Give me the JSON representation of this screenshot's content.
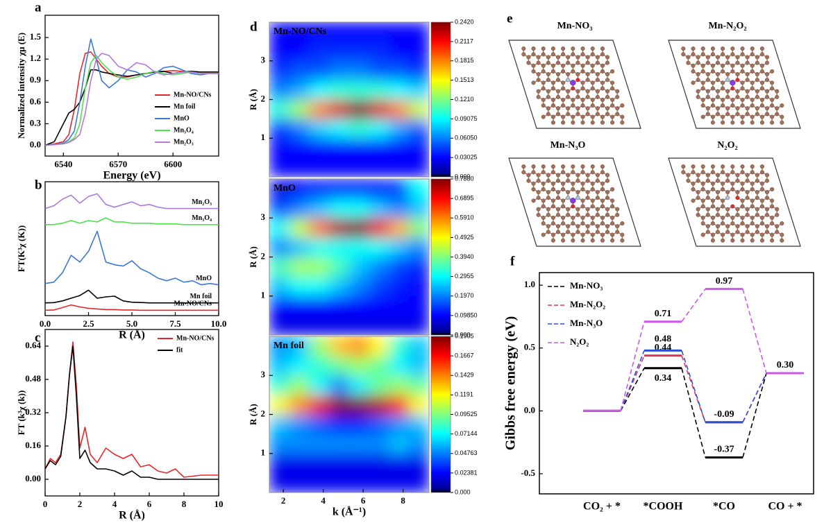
{
  "chart_data": [
    {
      "type": "line",
      "label": "a",
      "xlabel": "Energy (eV)",
      "ylabel": "Normalized intensity χμ (E)",
      "x": [
        6530,
        6535,
        6540,
        6543,
        6546,
        6549,
        6552,
        6555,
        6558,
        6561,
        6565,
        6570,
        6575,
        6580,
        6585,
        6590,
        6595,
        6600,
        6605,
        6610,
        6615,
        6620,
        6625
      ],
      "xlim": [
        6530,
        6625
      ],
      "xticks": [
        6540,
        6570,
        6600
      ],
      "ylim": [
        -0.15,
        1.81
      ],
      "yticks": [
        {
          "value": 0,
          "label": "0.0"
        },
        0.3,
        0.6,
        0.9,
        1.2,
        1.5
      ],
      "legend": "lower right",
      "series": [
        {
          "name": "Mn-NO/CNs",
          "color": "#e8262a",
          "values": [
            0.0,
            0.02,
            0.05,
            0.15,
            0.5,
            1.0,
            1.28,
            1.3,
            1.2,
            1.1,
            1.0,
            0.95,
            0.95,
            0.98,
            1.0,
            1.02,
            1.03,
            1.04,
            1.03,
            1.02,
            1.02,
            1.02,
            1.02
          ]
        },
        {
          "name": "Mn foil",
          "color": "#000000",
          "values": [
            0.0,
            0.05,
            0.3,
            0.45,
            0.5,
            0.6,
            0.8,
            1.05,
            1.05,
            1.02,
            1.0,
            0.98,
            0.96,
            0.98,
            1.0,
            1.02,
            1.03,
            1.0,
            1.02,
            1.03,
            1.02,
            1.02,
            1.02
          ]
        },
        {
          "name": "MnO",
          "color": "#3a78d8",
          "values": [
            0.0,
            0.01,
            0.03,
            0.08,
            0.2,
            0.6,
            1.1,
            1.48,
            1.2,
            0.9,
            0.8,
            0.9,
            1.05,
            1.02,
            0.95,
            1.0,
            1.08,
            1.1,
            1.05,
            1.0,
            0.98,
            1.0,
            1.0
          ]
        },
        {
          "name": "Mn₃O₄",
          "color": "#4ee04e",
          "values": [
            0.0,
            0.01,
            0.02,
            0.05,
            0.1,
            0.3,
            0.8,
            1.15,
            1.25,
            1.15,
            1.05,
            0.95,
            0.92,
            0.95,
            1.0,
            1.03,
            1.0,
            0.98,
            1.0,
            1.02,
            1.0,
            1.0,
            1.0
          ]
        },
        {
          "name": "Mn₂O₃",
          "color": "#b07ad8",
          "values": [
            0.0,
            0.01,
            0.02,
            0.04,
            0.08,
            0.15,
            0.45,
            0.9,
            1.2,
            1.28,
            1.25,
            1.1,
            1.05,
            1.15,
            1.12,
            1.02,
            0.98,
            1.0,
            1.02,
            1.02,
            1.0,
            1.0,
            1.0
          ]
        }
      ]
    },
    {
      "type": "line",
      "label": "b",
      "xlabel": "R (Å)",
      "ylabel": "FT(K³χ (K))",
      "x": [
        0,
        0.5,
        1,
        1.5,
        2,
        2.5,
        3,
        3.5,
        4,
        4.5,
        5,
        5.5,
        6,
        6.5,
        7,
        7.5,
        8,
        8.5,
        9,
        9.5,
        10
      ],
      "xlim": [
        0,
        10
      ],
      "xticks": [
        {
          "value": 0,
          "label": "0.0"
        },
        2.5,
        {
          "value": 5,
          "label": "5.0"
        },
        7.5,
        {
          "value": 10,
          "label": "10.0"
        }
      ],
      "ylim": [
        0,
        10
      ],
      "legend": "inline",
      "series": [
        {
          "name": "Mn₂O₃",
          "color": "#b07ad8",
          "values": [
            8.0,
            8.2,
            8.7,
            9.0,
            8.4,
            8.9,
            9.1,
            8.3,
            8.1,
            8.3,
            8.5,
            8.2,
            8.3,
            8.1,
            8.0,
            8.0,
            8.0,
            8.0,
            8.0,
            8.0,
            8.0
          ]
        },
        {
          "name": "Mn₃O₄",
          "color": "#4ee04e",
          "values": [
            6.8,
            6.8,
            6.9,
            7.1,
            6.9,
            7.1,
            7.0,
            7.3,
            7.0,
            7.0,
            6.9,
            6.9,
            6.9,
            6.85,
            6.85,
            6.85,
            6.8,
            6.8,
            6.8,
            6.8,
            6.8
          ]
        },
        {
          "name": "MnO",
          "color": "#3a78d8",
          "values": [
            2.4,
            2.5,
            3.2,
            4.5,
            4.0,
            4.8,
            6.3,
            4.0,
            3.8,
            3.7,
            4.1,
            3.5,
            3.2,
            2.8,
            2.6,
            2.8,
            2.5,
            2.6,
            2.3,
            2.4,
            2.3
          ]
        },
        {
          "name": "Mn foil",
          "color": "#000000",
          "values": [
            0.95,
            0.97,
            1.1,
            1.3,
            1.5,
            1.9,
            1.3,
            1.4,
            1.45,
            1.1,
            1.0,
            0.98,
            0.95,
            0.95,
            0.95,
            0.95,
            0.95,
            0.95,
            0.95,
            0.95,
            0.95
          ]
        },
        {
          "name": "Mn-NO/CNs",
          "color": "#e8262a",
          "values": [
            0.4,
            0.42,
            0.6,
            0.8,
            0.65,
            0.55,
            0.5,
            0.45,
            0.45,
            0.42,
            0.42,
            0.4,
            0.4,
            0.4,
            0.4,
            0.4,
            0.4,
            0.4,
            0.4,
            0.4,
            0.4
          ]
        }
      ]
    },
    {
      "type": "line",
      "label": "c",
      "xlabel": "R (Å)",
      "ylabel": "FT (k³χ (k))",
      "x": [
        0,
        0.3,
        0.6,
        0.9,
        1.2,
        1.4,
        1.6,
        1.8,
        2.0,
        2.3,
        2.6,
        3.0,
        3.5,
        4.0,
        4.5,
        5.0,
        5.5,
        6.0,
        6.5,
        7.0,
        7.5,
        8.0,
        9.0,
        10.0
      ],
      "xlim": [
        0,
        10
      ],
      "xticks": [
        0,
        2,
        4,
        6,
        8,
        10
      ],
      "ylim": [
        -0.08,
        0.72
      ],
      "yticks": [
        {
          "value": 0,
          "label": "0.00"
        },
        0.16,
        0.32,
        0.48,
        0.64
      ],
      "legend": "upper right",
      "series": [
        {
          "name": "Mn-NO/CNs",
          "color": "#e8262a",
          "values": [
            0.05,
            0.1,
            0.08,
            0.12,
            0.3,
            0.5,
            0.66,
            0.45,
            0.15,
            0.25,
            0.12,
            0.08,
            0.15,
            0.12,
            0.1,
            0.12,
            0.06,
            0.07,
            0.04,
            0.03,
            0.05,
            0.01,
            0.02,
            0.02
          ]
        },
        {
          "name": "fit",
          "color": "#000000",
          "values": [
            0.05,
            0.09,
            0.07,
            0.11,
            0.3,
            0.5,
            0.64,
            0.4,
            0.1,
            0.14,
            0.08,
            0.05,
            0.05,
            0.04,
            0.02,
            0.04,
            0.01,
            0.01,
            0.0,
            0.0,
            0.0,
            0.0,
            0.0,
            0.0
          ]
        }
      ]
    },
    {
      "type": "heatmap",
      "label": "d",
      "title": "Mn-NO/CNs",
      "title_color": "#e8262a",
      "ylabel": "R (Å)",
      "x": [
        1.8,
        2.8,
        3.8,
        4.8,
        5.8,
        6.8,
        7.8,
        8.8
      ],
      "y": [
        0.25,
        0.75,
        1.25,
        1.75,
        2.25,
        2.75,
        3.25,
        3.75
      ],
      "xlim": [
        1.3,
        9.3
      ],
      "ylim": [
        0,
        4
      ],
      "yticks": [
        1,
        2,
        3
      ],
      "colormap": "jet",
      "zlim": [
        0,
        0.242
      ],
      "zticks": [
        {
          "value": 0.242,
          "label": "0.2420"
        },
        {
          "value": 0.2117,
          "label": "0.2117"
        },
        {
          "value": 0.1815,
          "label": "0.1815"
        },
        {
          "value": 0.1513,
          "label": "0.1513"
        },
        {
          "value": 0.121,
          "label": "0.1210"
        },
        {
          "value": 0.09075,
          "label": "0.09075"
        },
        {
          "value": 0.0605,
          "label": "0.06050"
        },
        {
          "value": 0.03025,
          "label": "0.03025"
        },
        {
          "value": 0,
          "label": "0.000"
        }
      ],
      "z": [
        [
          0.03,
          0.03,
          0.03,
          0.03,
          0.03,
          0.03,
          0.03,
          0.03
        ],
        [
          0.03,
          0.03,
          0.03,
          0.03,
          0.03,
          0.03,
          0.03,
          0.03
        ],
        [
          0.04,
          0.06,
          0.08,
          0.09,
          0.1,
          0.09,
          0.07,
          0.05
        ],
        [
          0.1,
          0.13,
          0.18,
          0.22,
          0.24,
          0.22,
          0.18,
          0.14
        ],
        [
          0.06,
          0.07,
          0.09,
          0.1,
          0.1,
          0.1,
          0.09,
          0.08
        ],
        [
          0.04,
          0.05,
          0.05,
          0.06,
          0.06,
          0.05,
          0.05,
          0.04
        ],
        [
          0.03,
          0.03,
          0.04,
          0.04,
          0.04,
          0.04,
          0.03,
          0.03
        ],
        [
          0.03,
          0.03,
          0.03,
          0.03,
          0.03,
          0.03,
          0.03,
          0.03
        ]
      ]
    },
    {
      "type": "heatmap",
      "title": "MnO",
      "title_color": "#ffffff",
      "ylabel": "R (Å)",
      "x": [
        1.8,
        2.8,
        3.8,
        4.8,
        5.8,
        6.8,
        7.8,
        8.8
      ],
      "y": [
        0.25,
        0.75,
        1.25,
        1.75,
        2.25,
        2.75,
        3.25,
        3.75
      ],
      "xlim": [
        1.3,
        9.3
      ],
      "ylim": [
        0,
        4
      ],
      "yticks": [
        1,
        2,
        3
      ],
      "colormap": "jet",
      "zlim": [
        0,
        0.788
      ],
      "zticks": [
        {
          "value": 0.788,
          "label": "0.7880"
        },
        {
          "value": 0.6895,
          "label": "0.6895"
        },
        {
          "value": 0.591,
          "label": "0.5910"
        },
        {
          "value": 0.4925,
          "label": "0.4925"
        },
        {
          "value": 0.394,
          "label": "0.3940"
        },
        {
          "value": 0.2955,
          "label": "0.2955"
        },
        {
          "value": 0.197,
          "label": "0.1970"
        },
        {
          "value": 0.0985,
          "label": "0.09850"
        },
        {
          "value": 0,
          "label": "0.000"
        }
      ],
      "z": [
        [
          0.08,
          0.08,
          0.08,
          0.08,
          0.08,
          0.08,
          0.08,
          0.08
        ],
        [
          0.1,
          0.1,
          0.1,
          0.1,
          0.1,
          0.1,
          0.1,
          0.1
        ],
        [
          0.25,
          0.3,
          0.3,
          0.25,
          0.2,
          0.15,
          0.12,
          0.1
        ],
        [
          0.35,
          0.42,
          0.42,
          0.35,
          0.25,
          0.2,
          0.15,
          0.12
        ],
        [
          0.2,
          0.25,
          0.3,
          0.3,
          0.3,
          0.3,
          0.25,
          0.2
        ],
        [
          0.3,
          0.45,
          0.6,
          0.75,
          0.78,
          0.7,
          0.55,
          0.4
        ],
        [
          0.15,
          0.2,
          0.25,
          0.3,
          0.3,
          0.25,
          0.2,
          0.25
        ],
        [
          0.08,
          0.1,
          0.12,
          0.12,
          0.12,
          0.12,
          0.15,
          0.3
        ]
      ]
    },
    {
      "type": "heatmap",
      "title": "Mn foil",
      "title_color": "#ffffff",
      "ylabel": "R (Å)",
      "xlabel": "k (Å⁻¹)",
      "x": [
        1.8,
        2.8,
        3.8,
        4.8,
        5.8,
        6.8,
        7.8,
        8.8
      ],
      "y": [
        0.25,
        0.75,
        1.25,
        1.75,
        2.25,
        2.75,
        3.25,
        3.75
      ],
      "xlim": [
        1.3,
        9.3
      ],
      "xticks": [
        2,
        4,
        6,
        8
      ],
      "ylim": [
        0,
        4
      ],
      "yticks": [
        1,
        2,
        3
      ],
      "colormap": "jet",
      "zlim": [
        0,
        0.1905
      ],
      "zticks": [
        {
          "value": 0.1905,
          "label": "0.1905"
        },
        {
          "value": 0.1667,
          "label": "0.1667"
        },
        {
          "value": 0.1429,
          "label": "0.1429"
        },
        {
          "value": 0.1191,
          "label": "0.1191"
        },
        {
          "value": 0.09525,
          "label": "0.09525"
        },
        {
          "value": 0.07144,
          "label": "0.07144"
        },
        {
          "value": 0.04763,
          "label": "0.04763"
        },
        {
          "value": 0.02381,
          "label": "0.02381"
        },
        {
          "value": 0,
          "label": "0.000"
        }
      ],
      "z": [
        [
          0.02,
          0.02,
          0.02,
          0.02,
          0.02,
          0.02,
          0.02,
          0.02
        ],
        [
          0.02,
          0.02,
          0.02,
          0.02,
          0.02,
          0.02,
          0.02,
          0.02
        ],
        [
          0.05,
          0.05,
          0.05,
          0.05,
          0.05,
          0.05,
          0.06,
          0.05
        ],
        [
          0.06,
          0.05,
          0.04,
          0.03,
          0.03,
          0.04,
          0.05,
          0.06
        ],
        [
          0.12,
          0.14,
          0.17,
          0.19,
          0.19,
          0.18,
          0.16,
          0.12
        ],
        [
          0.08,
          0.1,
          0.07,
          0.05,
          0.07,
          0.09,
          0.1,
          0.09
        ],
        [
          0.06,
          0.07,
          0.08,
          0.09,
          0.1,
          0.09,
          0.07,
          0.06
        ],
        [
          0.05,
          0.06,
          0.1,
          0.13,
          0.14,
          0.12,
          0.08,
          0.06
        ]
      ]
    },
    {
      "type": "energy_levels",
      "label": "f",
      "ylabel": "Gibbs free energy (eV)",
      "categories": [
        "CO₂ + *",
        "*COOH",
        "*CO",
        "CO + *"
      ],
      "ylim": [
        -0.66,
        1.1
      ],
      "yticks": [
        {
          "value": 1,
          "label": "1.0"
        },
        0.5,
        {
          "value": 0,
          "label": "0.0"
        },
        -0.5
      ],
      "legend": "upper left",
      "series": [
        {
          "name": "Mn-NO₃",
          "color": "#000000",
          "values": [
            0,
            0.34,
            -0.37,
            0.3
          ],
          "value_labels": [
            null,
            "0.34",
            "-0.37",
            "0.30"
          ]
        },
        {
          "name": "Mn-N₂O₂",
          "color": "#e83050",
          "values": [
            0,
            0.44,
            -0.09,
            0.3
          ],
          "value_labels": [
            null,
            "0.44",
            null,
            null
          ]
        },
        {
          "name": "Mn-N₃O",
          "color": "#2850d8",
          "values": [
            0,
            0.48,
            -0.09,
            0.3
          ],
          "value_labels": [
            null,
            "0.48",
            "-0.09",
            null
          ]
        },
        {
          "name": "N₂O₂",
          "color": "#cc55ee",
          "values": [
            0,
            0.71,
            0.97,
            0.3
          ],
          "value_labels": [
            null,
            "0.71",
            "0.97",
            null
          ]
        }
      ]
    }
  ],
  "diagram": {
    "label": "e",
    "structures": [
      {
        "label": "Mn-NO₃"
      },
      {
        "label": "Mn-N₂O₂"
      },
      {
        "label": "Mn-N₃O"
      },
      {
        "label": "N₂O₂"
      }
    ]
  }
}
